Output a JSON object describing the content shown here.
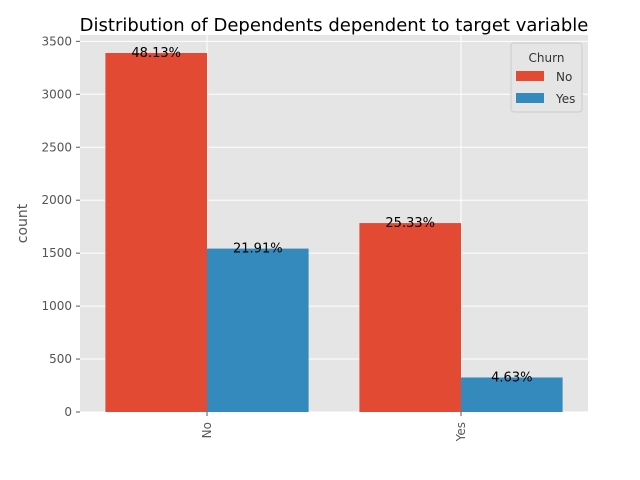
{
  "chart_data": {
    "type": "bar",
    "title": "Distribution of Dependents dependent to target variable",
    "xlabel": "",
    "ylabel": "count",
    "categories": [
      "No",
      "Yes"
    ],
    "series": [
      {
        "name": "No",
        "values": [
          3390,
          1784
        ],
        "labels": [
          "48.13%",
          "25.33%"
        ],
        "color": "#E24A33"
      },
      {
        "name": "Yes",
        "values": [
          1543,
          326
        ],
        "labels": [
          "21.91%",
          "4.63%"
        ],
        "color": "#348ABD"
      }
    ],
    "ylim": [
      0,
      3560
    ],
    "yticks": [
      0,
      500,
      1000,
      1500,
      2000,
      2500,
      3000,
      3500
    ],
    "grid": true,
    "legend": {
      "title": "Churn",
      "position": "top-right"
    },
    "style": {
      "background": "#E5E5E5",
      "grid_color": "#FFFFFF"
    }
  }
}
